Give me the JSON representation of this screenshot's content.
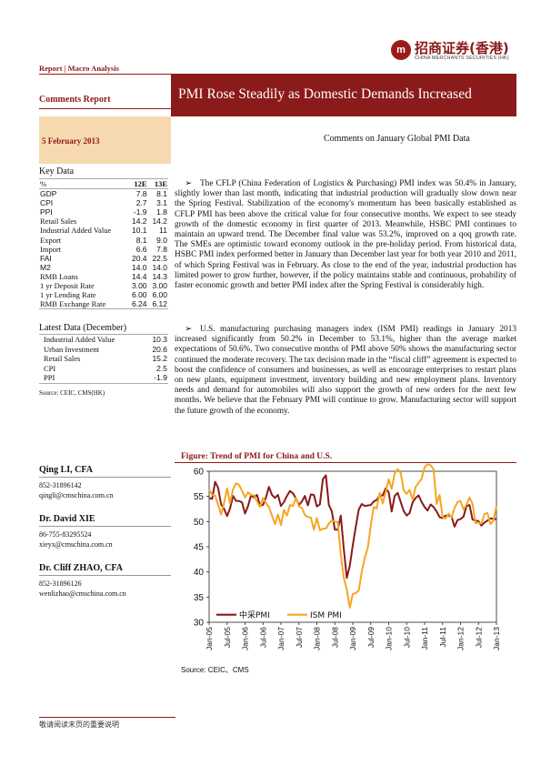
{
  "header": {
    "logo_mark": "m",
    "logo_cn": "招商证券(香港)",
    "logo_en": "CHINA MERCHANTS SECURITIES (HK)",
    "report_type": "Report | Macro Analysis",
    "section": "Comments Report",
    "title": "PMI Rose Steadily as Domestic Demands Increased",
    "date": "5 February 2013",
    "subtitle": "Comments on January Global PMI Data"
  },
  "key_data": {
    "title": "Key Data",
    "columns": [
      "%",
      "12E",
      "13E"
    ],
    "rows": [
      {
        "label": "GDP",
        "v12": "7.8",
        "v13": "8.1"
      },
      {
        "label": "CPI",
        "v12": "2.7",
        "v13": "3.1"
      },
      {
        "label": "PPI",
        "v12": "-1.9",
        "v13": "1.8"
      },
      {
        "label": "Retail Sales",
        "v12": "14.2",
        "v13": "14.2"
      },
      {
        "label": "Industrial Added Value",
        "v12": "10.1",
        "v13": "11"
      },
      {
        "label": "Export",
        "v12": "8.1",
        "v13": "9.0"
      },
      {
        "label": "Import",
        "v12": "6.6",
        "v13": "7.8"
      },
      {
        "label": "FAI",
        "v12": "20.4",
        "v13": "22.5"
      },
      {
        "label": "M2",
        "v12": "14.0",
        "v13": "14.0"
      },
      {
        "label": "RMB Loans",
        "v12": "14.4",
        "v13": "14.3"
      },
      {
        "label": "1 yr Deposit Rate",
        "v12": "3.00",
        "v13": "3.00"
      },
      {
        "label": "1 yr Lending Rate",
        "v12": "6.00",
        "v13": "6.00"
      },
      {
        "label": "RMB Exchange Rate",
        "v12": "6.24",
        "v13": "6.12"
      }
    ]
  },
  "latest_data": {
    "title": "Latest Data (December)",
    "rows": [
      {
        "label": "Industrial Added Value",
        "value": "10.3"
      },
      {
        "label": "Urban Investment",
        "value": "20.6"
      },
      {
        "label": "Retail Sales",
        "value": "15.2"
      },
      {
        "label": "CPI",
        "value": "2.5"
      },
      {
        "label": "PPI",
        "value": "-1.9"
      }
    ],
    "source": "Source: CEIC, CMS(HK)"
  },
  "analysts": [
    {
      "name": "Qing LI, CFA",
      "phone": "852-31896142",
      "email": "qingli@cmschina.com.cn"
    },
    {
      "name": "Dr. David XIE",
      "phone": "86-755-83295524",
      "email": "xieyx@cmschina.com.cn"
    },
    {
      "name": "Dr. Cliff ZHAO, CFA",
      "phone": "852-31896126",
      "email": "wenlizhao@cmschina.com.cn"
    }
  ],
  "body": {
    "bullet": "➢",
    "para1": "The CFLP (China Federation of Logistics & Purchasing) PMI index was 50.4% in January, slightly lower than last month, indicating that industrial production will gradually slow down near the Spring Festival. Stabilization of the economy's momentum has been basically established as CFLP PMI has been above the critical value for four consecutive months. We expect to see steady growth of the domestic economy in first quarter of 2013. Meanwhile, HSBC PMI continues to maintain an upward trend. The December final value was 53.2%, improved on a qoq growth rate. The SMEs are optimistic toward economy outlook in the pre-holiday period. From historical data, HSBC PMI index performed better in January than December last year for both year 2010 and 2011, of which Spring Festival was in February. As close to the end of the year, industrial production has limited power to grow further, however, if the policy maintains stable and continuous, probability of faster economic growth and better PMI index after the Spring Festival is considerably high.",
    "para2": "U.S. manufacturing purchasing managers index (ISM PMI) readings in January 2013 increased significantly from 50.2% in December to 53.1%, higher than the average market expectations of 50.6%. Two consecutive months of PMI above 50% shows the manufacturing sector continued the moderate recovery. The tax decision made in the “fiscal cliff” agreement is expected to boost the confidence of consumers and businesses, as well as encourage enterprises to restart plans on new plants, equipment investment, inventory building and new employment plans. Inventory needs and demand for automobiles will also support the growth of new orders for the next few months. We believe that the February PMI will continue to grow. Manufacturing sector will support the future growth of the economy."
  },
  "figure": {
    "title": "Figure:  Trend of PMI for China and U.S.",
    "source": "Source:  CEIC、CMS"
  },
  "chart_data": {
    "type": "line",
    "title": "",
    "xlabel": "",
    "ylabel": "",
    "ylim": [
      30,
      60
    ],
    "yticks": [
      30,
      35,
      40,
      45,
      50,
      55,
      60
    ],
    "xlim": [
      0,
      96
    ],
    "x_tick_labels": [
      "Jan-05",
      "Jul-05",
      "Jan-06",
      "Jul-06",
      "Jan-07",
      "Jul-07",
      "Jan-08",
      "Jul-08",
      "Jan-09",
      "Jul-09",
      "Jan-10",
      "Jul-10",
      "Jan-11",
      "Jul-11",
      "Jan-12",
      "Jul-12",
      "Jan-13"
    ],
    "x_tick_positions": [
      0,
      6,
      12,
      18,
      24,
      30,
      36,
      42,
      48,
      54,
      60,
      66,
      72,
      78,
      84,
      90,
      96
    ],
    "grid": false,
    "legend": "bottom-left",
    "colors": {
      "china": "#8B1A1A",
      "us": "#F5A623"
    },
    "series": [
      {
        "name": "中采PMI",
        "x": [
          0,
          1,
          2,
          3,
          4,
          5,
          6,
          7,
          8,
          9,
          10,
          11,
          12,
          13,
          14,
          15,
          16,
          17,
          18,
          19,
          20,
          21,
          22,
          23,
          24,
          25,
          26,
          27,
          28,
          29,
          30,
          31,
          32,
          33,
          34,
          35,
          36,
          37,
          38,
          39,
          40,
          41,
          42,
          43,
          44,
          45,
          46,
          47,
          48,
          49,
          50,
          51,
          52,
          53,
          54,
          55,
          56,
          57,
          58,
          59,
          60,
          61,
          62,
          63,
          64,
          65,
          66,
          67,
          68,
          69,
          70,
          71,
          72,
          73,
          74,
          75,
          76,
          77,
          78,
          79,
          80,
          81,
          82,
          83,
          84,
          85,
          86,
          87,
          88,
          89,
          90,
          91,
          92,
          93,
          94,
          95,
          96
        ],
        "values": [
          54.7,
          54.5,
          57.9,
          56.7,
          53.4,
          52.5,
          51.1,
          52.6,
          55.1,
          54.1,
          54.1,
          53.8,
          51.6,
          53.1,
          55.2,
          54.8,
          55.3,
          53.2,
          53.3,
          54.8,
          56.9,
          55.3,
          54.7,
          55.3,
          53.1,
          53.9,
          55.1,
          56.1,
          55.6,
          54.6,
          53.3,
          54.0,
          55.1,
          53.2,
          55.4,
          55.3,
          53.0,
          53.4,
          58.4,
          59.2,
          53.3,
          52.0,
          48.4,
          48.4,
          51.2,
          44.6,
          38.8,
          41.2,
          45.3,
          49.0,
          52.4,
          53.5,
          53.1,
          53.2,
          53.3,
          54.0,
          54.3,
          55.2,
          55.2,
          56.6,
          55.8,
          52.0,
          55.1,
          55.7,
          53.9,
          52.1,
          51.2,
          51.7,
          53.8,
          54.7,
          55.2,
          53.9,
          52.9,
          52.2,
          53.4,
          52.9,
          52.0,
          50.9,
          50.7,
          51.2,
          51.2,
          51.0,
          49.0,
          50.3,
          50.5,
          51.0,
          53.1,
          53.3,
          50.4,
          50.2,
          50.1,
          49.2,
          49.8,
          50.2,
          50.6,
          50.6,
          50.4
        ]
      },
      {
        "name": "ISM PMI",
        "x": [
          0,
          1,
          2,
          3,
          4,
          5,
          6,
          7,
          8,
          9,
          10,
          11,
          12,
          13,
          14,
          15,
          16,
          17,
          18,
          19,
          20,
          21,
          22,
          23,
          24,
          25,
          26,
          27,
          28,
          29,
          30,
          31,
          32,
          33,
          34,
          35,
          36,
          37,
          38,
          39,
          40,
          41,
          42,
          43,
          44,
          45,
          46,
          47,
          48,
          49,
          50,
          51,
          52,
          53,
          54,
          55,
          56,
          57,
          58,
          59,
          60,
          61,
          62,
          63,
          64,
          65,
          66,
          67,
          68,
          69,
          70,
          71,
          72,
          73,
          74,
          75,
          76,
          77,
          78,
          79,
          80,
          81,
          82,
          83,
          84,
          85,
          86,
          87,
          88,
          89,
          90,
          91,
          92,
          93,
          94,
          95,
          96
        ],
        "values": [
          56.4,
          55.3,
          55.2,
          53.3,
          51.4,
          53.8,
          56.6,
          53.6,
          56.4,
          57.6,
          57.3,
          56.1,
          54.8,
          55.8,
          55.3,
          55.2,
          54.0,
          52.9,
          54.7,
          53.7,
          52.9,
          51.2,
          49.5,
          51.4,
          49.3,
          52.3,
          51.2,
          53.3,
          53.1,
          54.7,
          53.0,
          52.7,
          51.3,
          50.9,
          50.8,
          48.4,
          50.7,
          48.3,
          48.6,
          48.6,
          49.6,
          50.2,
          50.0,
          49.9,
          43.4,
          38.9,
          36.5,
          32.9,
          35.6,
          35.8,
          36.3,
          40.1,
          42.8,
          44.8,
          49.2,
          52.9,
          52.6,
          55.7,
          53.6,
          55.9,
          58.4,
          56.5,
          59.6,
          60.4,
          59.7,
          56.2,
          55.5,
          56.3,
          54.4,
          56.9,
          57.7,
          58.5,
          60.8,
          61.4,
          61.2,
          60.4,
          53.5,
          55.3,
          50.9,
          50.6,
          51.6,
          50.8,
          52.7,
          53.9,
          54.1,
          52.4,
          53.4,
          54.8,
          53.5,
          49.7,
          49.8,
          49.6,
          51.5,
          51.7,
          49.5,
          50.2,
          53.1
        ]
      }
    ]
  },
  "footer": {
    "text": "敬请阅读末页的重要说明"
  }
}
